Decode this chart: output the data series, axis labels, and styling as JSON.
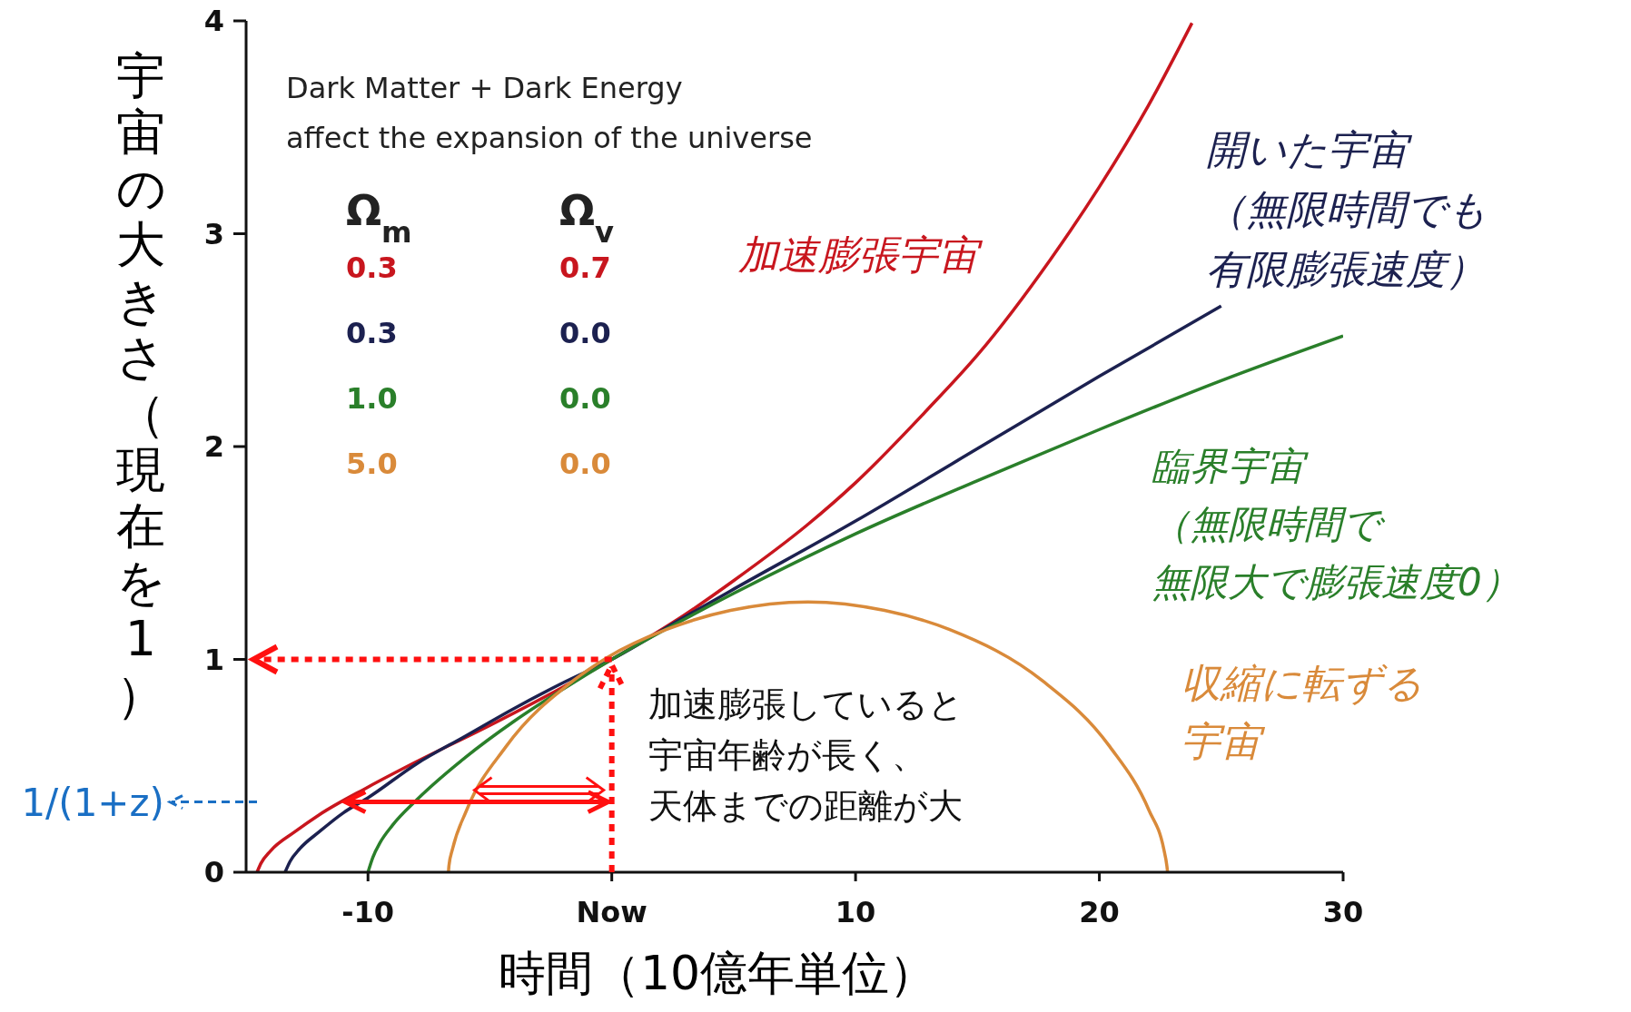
{
  "chart_data": {
    "type": "line",
    "xlabel": "時間（10億年単位）",
    "ylabel": "宇宙の大きさ（現在を1）",
    "xlim": [
      -15,
      30
    ],
    "xticks": [
      -10,
      {
        "value": 0,
        "label": "Now"
      },
      10,
      20,
      30
    ],
    "ylim": [
      0,
      4
    ],
    "yticks": [
      0,
      1,
      2,
      3,
      4
    ],
    "series": [
      {
        "name": "加速膨張宇宙",
        "color": "#c8161e",
        "x": [
          -14.55,
          -14.4,
          -14,
          -13,
          -12,
          -10,
          -8,
          -5,
          -2,
          0,
          3,
          5,
          8,
          10,
          13,
          15,
          18,
          20,
          22,
          23.8
        ],
        "values": [
          0,
          0.04,
          0.1,
          0.19,
          0.27,
          0.4,
          0.52,
          0.69,
          0.87,
          1,
          1.21,
          1.37,
          1.63,
          1.83,
          2.18,
          2.43,
          2.88,
          3.22,
          3.6,
          3.99
        ]
      },
      {
        "name": "開いた宇宙（無限時間でも有限膨張速度）",
        "color": "#1c2150",
        "x": [
          -13.4,
          -13.2,
          -12.8,
          -12,
          -11,
          -10,
          -8,
          -6,
          -4,
          -2,
          0,
          3,
          5,
          10,
          15,
          20,
          25
        ],
        "values": [
          0,
          0.05,
          0.11,
          0.19,
          0.28,
          0.35,
          0.51,
          0.64,
          0.77,
          0.89,
          1,
          1.2,
          1.33,
          1.65,
          1.99,
          2.33,
          2.66
        ]
      },
      {
        "name": "臨界宇宙（無限時間で無限大で膨張速度0）",
        "color": "#2a7f2a",
        "x": [
          -10,
          -9.8,
          -9.5,
          -9,
          -8,
          -6,
          -4,
          -2,
          0,
          3,
          5,
          10,
          15,
          20,
          25,
          30
        ],
        "values": [
          0,
          0.07,
          0.14,
          0.22,
          0.34,
          0.54,
          0.71,
          0.86,
          1,
          1.19,
          1.31,
          1.59,
          1.84,
          2.08,
          2.31,
          2.52
        ]
      },
      {
        "name": "収縮に転ずる宇宙",
        "color": "#d98a3a",
        "x": [
          -6.7,
          -6.68,
          -6.53,
          -5.96,
          -4.34,
          -1.58,
          -0.17,
          2.23,
          4.87,
          8.05,
          11.19,
          13.86,
          17.66,
          20.43,
          22.04,
          22.64,
          22.77,
          22.8
        ],
        "values": [
          0,
          0.03,
          0.11,
          0.29,
          0.59,
          0.9,
          1.01,
          1.14,
          1.23,
          1.27,
          1.23,
          1.14,
          0.9,
          0.59,
          0.29,
          0.11,
          0.03,
          0
        ]
      }
    ],
    "annotations": [
      "Dark Matter + Dark Energy",
      "affect the expansion of the universe",
      "Ω$_{m}$ Ω$_{v}$",
      "0.3 0.7",
      "0.3 0.0",
      "1.0 0.0",
      "5.0 0.0",
      {
        "text": "加速膨張していると宇宙年齢が長く、天体までの距離が大",
        "x": 0,
        "y": 1
      },
      "1/(1+z)"
    ]
  }
}
